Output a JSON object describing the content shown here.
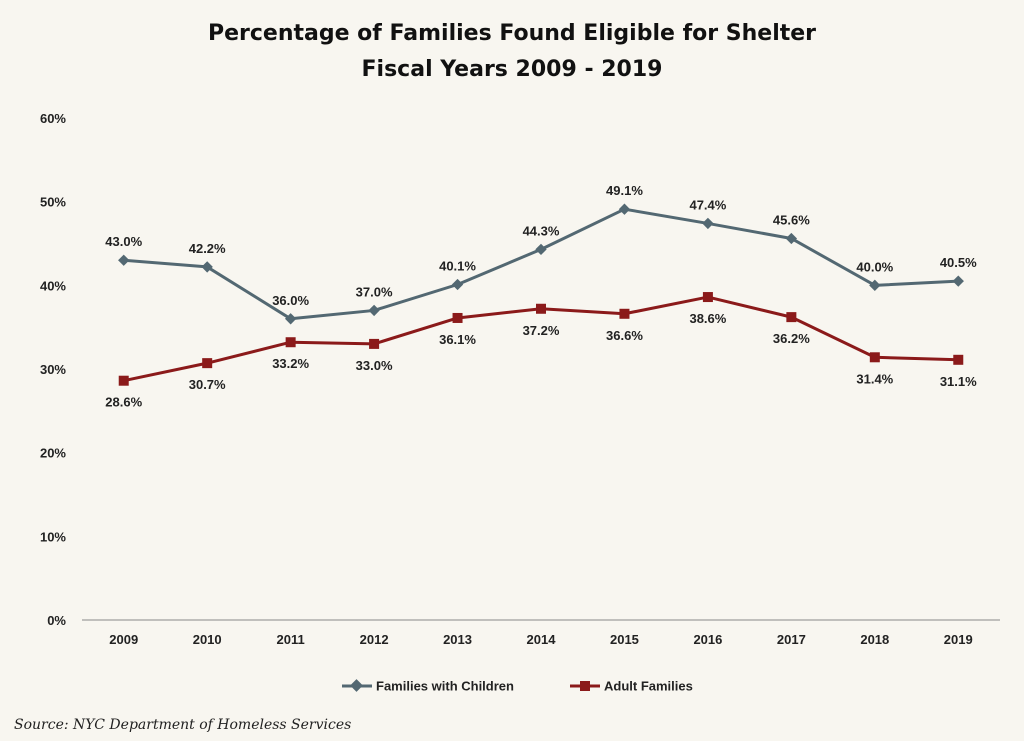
{
  "chart_data": {
    "type": "line",
    "title": "Percentage of Families Found Eligible for Shelter",
    "subtitle": "Fiscal Years 2009 - 2019",
    "categories": [
      "2009",
      "2010",
      "2011",
      "2012",
      "2013",
      "2014",
      "2015",
      "2016",
      "2017",
      "2018",
      "2019"
    ],
    "ylim": [
      0,
      60
    ],
    "yticks": [
      "0%",
      "10%",
      "20%",
      "30%",
      "40%",
      "50%",
      "60%"
    ],
    "grid": false,
    "legend_position": "bottom",
    "series": [
      {
        "name": "Families with Children",
        "color": "#536872",
        "marker": "diamond",
        "values": [
          43.0,
          42.2,
          36.0,
          37.0,
          40.1,
          44.3,
          49.1,
          47.4,
          45.6,
          40.0,
          40.5
        ],
        "labels": [
          "43.0%",
          "42.2%",
          "36.0%",
          "37.0%",
          "40.1%",
          "44.3%",
          "49.1%",
          "47.4%",
          "45.6%",
          "40.0%",
          "40.5%"
        ]
      },
      {
        "name": "Adult Families",
        "color": "#8b1a1a",
        "marker": "square",
        "values": [
          28.6,
          30.7,
          33.2,
          33.0,
          36.1,
          37.2,
          36.6,
          38.6,
          36.2,
          31.4,
          31.1
        ],
        "labels": [
          "28.6%",
          "30.7%",
          "33.2%",
          "33.0%",
          "36.1%",
          "37.2%",
          "36.6%",
          "38.6%",
          "36.2%",
          "31.4%",
          "31.1%"
        ]
      }
    ]
  },
  "source": "Source: NYC Department of Homeless Services"
}
